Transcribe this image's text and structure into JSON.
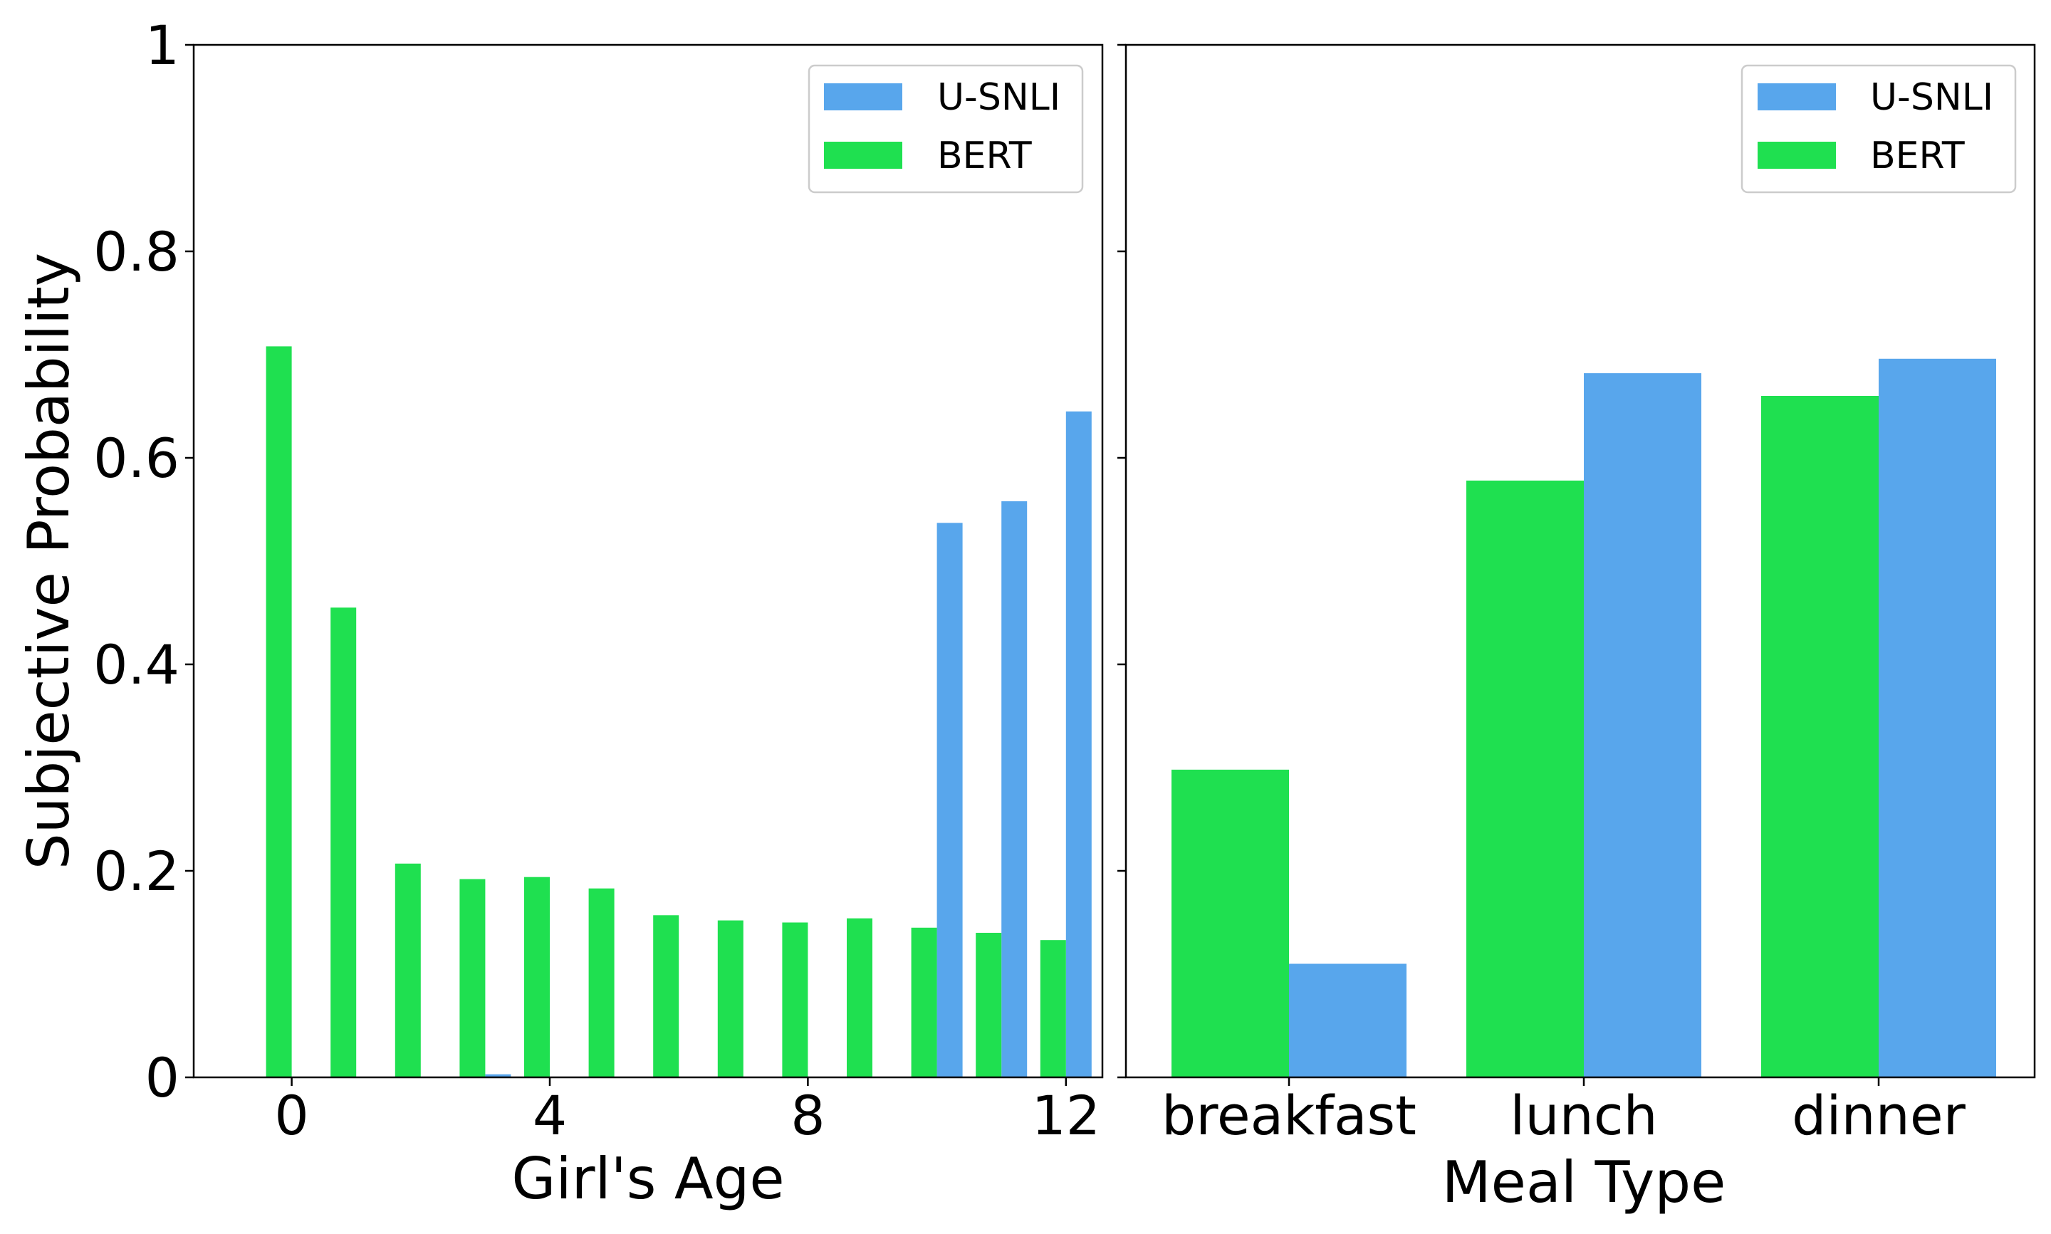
{
  "colors": {
    "usnli": "#58a6ec",
    "bert": "#1fe050"
  },
  "ylabel": "Subjective Probability",
  "ylim": [
    0,
    1
  ],
  "yticks": [
    {
      "value": 0,
      "label": "0"
    },
    {
      "value": 0.2,
      "label": "0.2"
    },
    {
      "value": 0.4,
      "label": "0.4"
    },
    {
      "value": 0.6,
      "label": "0.6"
    },
    {
      "value": 0.8,
      "label": "0.8"
    },
    {
      "value": 1,
      "label": "1"
    }
  ],
  "legend": {
    "entries": [
      "U-SNLI",
      "BERT"
    ],
    "placement": "top-right"
  },
  "chart_data": [
    {
      "type": "bar",
      "xlabel": "Girl's Age",
      "ylabel": "Subjective Probability",
      "ylim": [
        0,
        1
      ],
      "xticks": [
        {
          "value": 0,
          "label": "0"
        },
        {
          "value": 4,
          "label": "4"
        },
        {
          "value": 8,
          "label": "8"
        },
        {
          "value": 12,
          "label": "12"
        }
      ],
      "x": [
        0,
        1,
        2,
        3,
        4,
        5,
        6,
        7,
        8,
        9,
        10,
        11,
        12
      ],
      "series": [
        {
          "name": "U-SNLI",
          "values": [
            0,
            0,
            0,
            0.003,
            0,
            0,
            0,
            0,
            0,
            0,
            0.537,
            0.558,
            0.645
          ]
        },
        {
          "name": "BERT",
          "values": [
            0.708,
            0.455,
            0.207,
            0.192,
            0.194,
            0.183,
            0.157,
            0.152,
            0.15,
            0.154,
            0.145,
            0.14,
            0.133
          ]
        }
      ],
      "legend": "top-right"
    },
    {
      "type": "bar",
      "xlabel": "Meal Type",
      "ylim": [
        0,
        1
      ],
      "categories": [
        "breakfast",
        "lunch",
        "dinner"
      ],
      "series": [
        {
          "name": "BERT",
          "values": [
            0.298,
            0.578,
            0.66
          ]
        },
        {
          "name": "U-SNLI",
          "values": [
            0.11,
            0.682,
            0.696
          ]
        }
      ],
      "legend": "top-right"
    }
  ]
}
